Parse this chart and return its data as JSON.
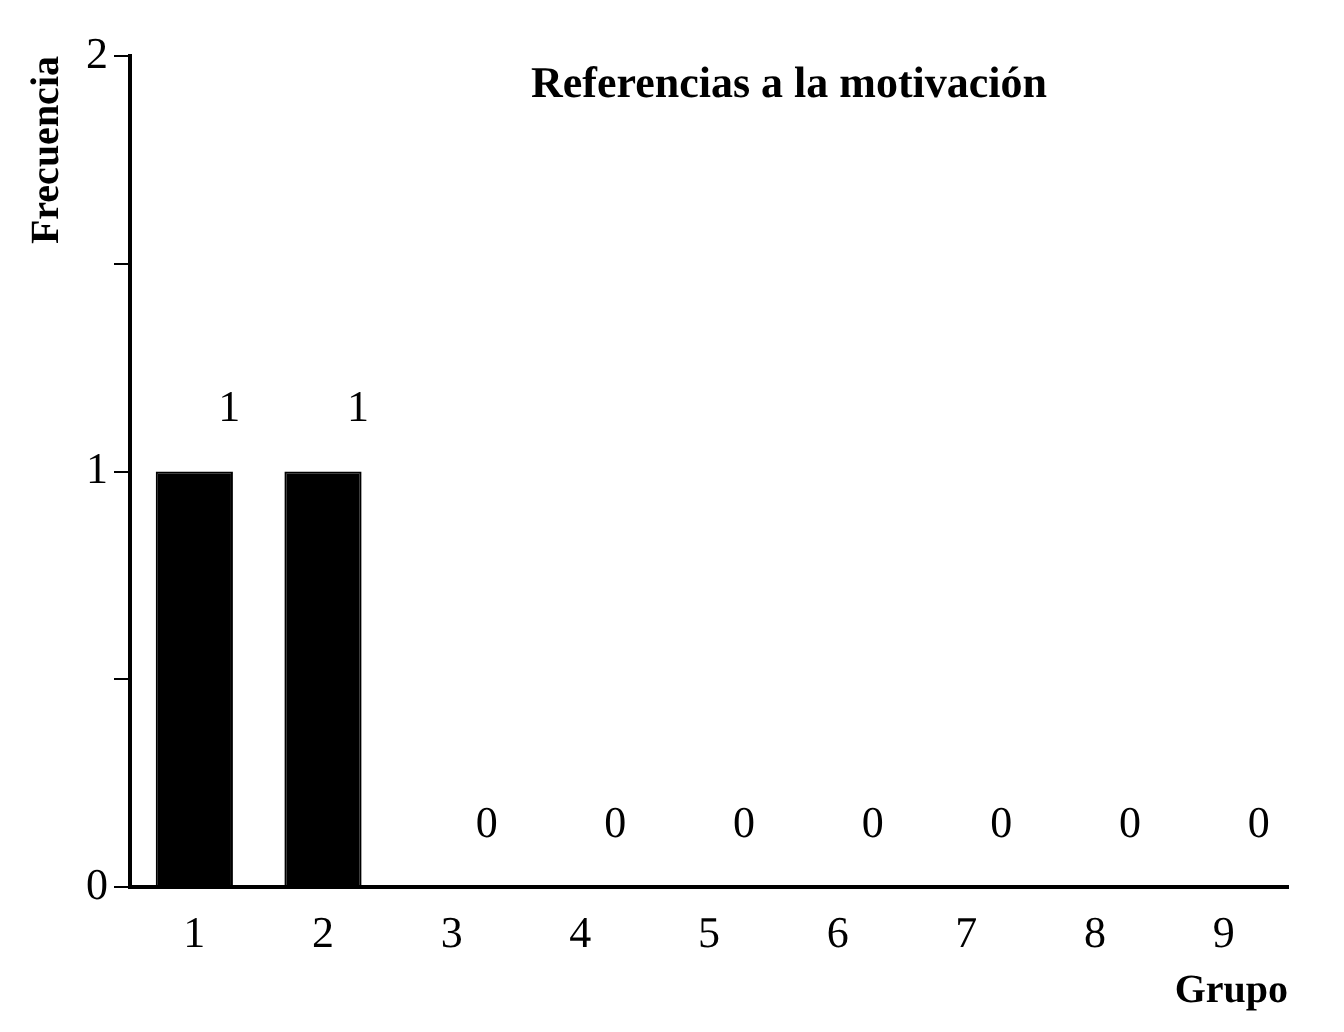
{
  "chart_data": {
    "type": "bar",
    "title": "Referencias a la motivación",
    "xlabel": "Grupo",
    "ylabel": "Frecuencia",
    "categories": [
      "1",
      "2",
      "3",
      "4",
      "5",
      "6",
      "7",
      "8",
      "9"
    ],
    "values": [
      1,
      1,
      0,
      0,
      0,
      0,
      0,
      0,
      0
    ],
    "color": "#000000",
    "ylim": [
      0,
      2
    ],
    "yticks": [
      0,
      {
        "value": 0.5,
        "label": null
      },
      1,
      {
        "value": 1.5,
        "label": null
      },
      2
    ],
    "grid": false,
    "legend": false,
    "data_labels": true
  }
}
